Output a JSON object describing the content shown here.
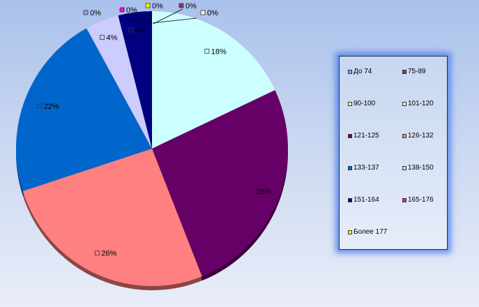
{
  "chart_data": {
    "type": "pie",
    "title": "",
    "categories": [
      "До 74",
      "75-89",
      "90-100",
      "101-120",
      "121-125",
      "126-132",
      "133-137",
      "138-150",
      "151-164",
      "165-176",
      "Более 177"
    ],
    "values": [
      0,
      0,
      0,
      18,
      26,
      26,
      22,
      4,
      4,
      0,
      0
    ],
    "labels": [
      "0%",
      "0%",
      "0%",
      "18%",
      "26%",
      "26%",
      "22%",
      "4%",
      "4%",
      "0%",
      "0%"
    ],
    "colors": [
      "#9999ff",
      "#993366",
      "#ffffcc",
      "#ccffff",
      "#660066",
      "#ff8080",
      "#0066cc",
      "#ccccff",
      "#000080",
      "#ff00ff",
      "#ffff00"
    ],
    "legend_position": "right",
    "grid": false
  }
}
